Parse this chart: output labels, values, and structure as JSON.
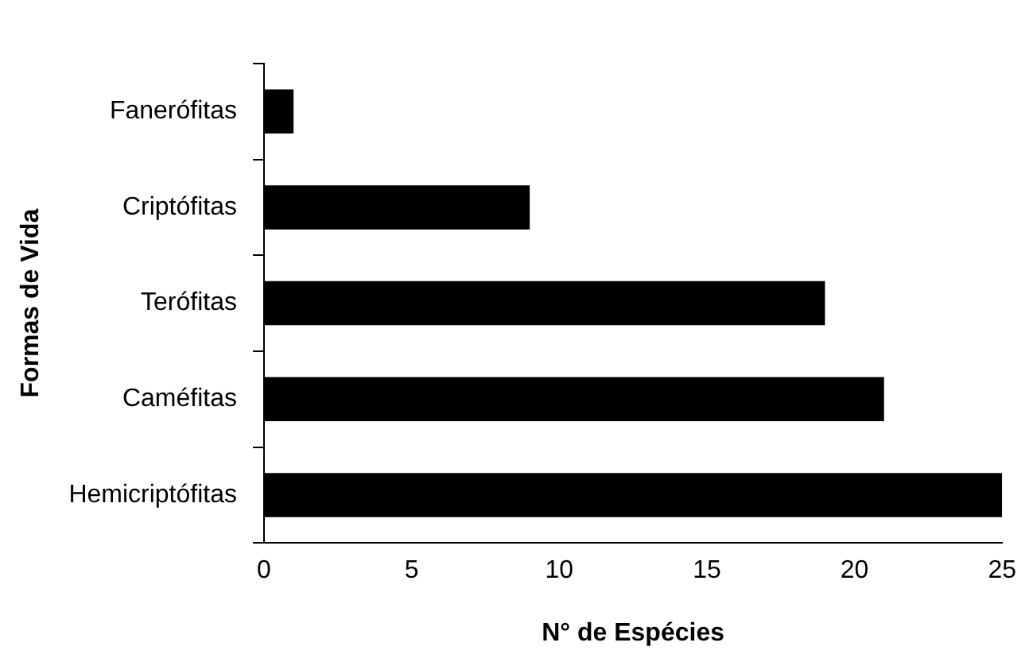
{
  "chart_data": {
    "type": "bar",
    "orientation": "horizontal",
    "categories": [
      "Fanerófitas",
      "Criptófitas",
      "Terófitas",
      "Caméfitas",
      "Hemicriptófitas"
    ],
    "values": [
      1,
      9,
      19,
      21,
      25
    ],
    "color": "#000000",
    "xlim": [
      0,
      25
    ],
    "xticks": [
      0,
      5,
      10,
      15,
      20,
      25
    ],
    "xlabel": "N° de Espécies",
    "ylabel": "Formas de Vida"
  }
}
